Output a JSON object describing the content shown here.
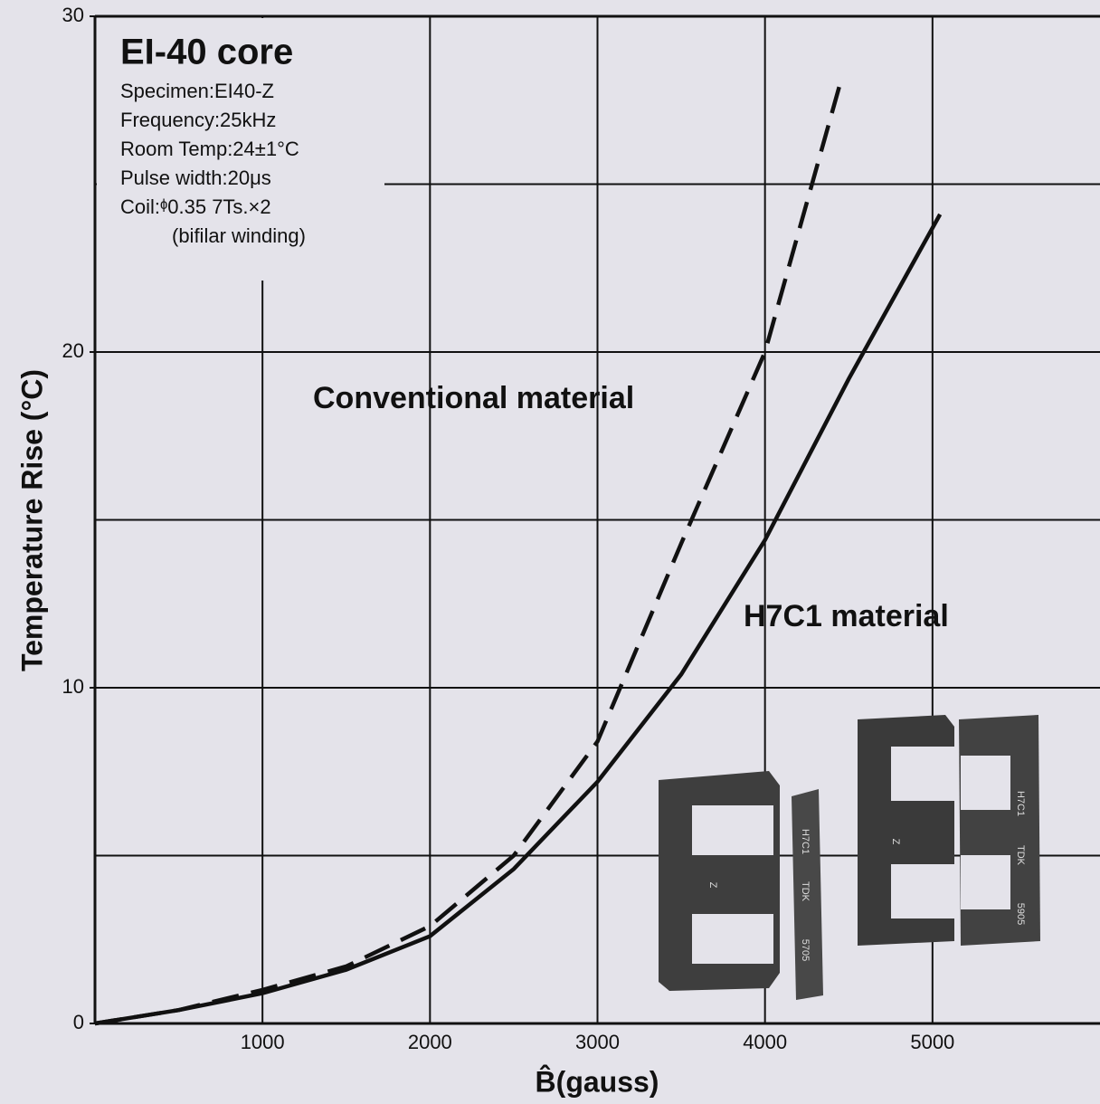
{
  "chart_data": {
    "type": "line",
    "title": "EI-40 core",
    "conditions": [
      "Specimen:EI40-Z",
      "Frequency:25kHz",
      "Room Temp:24±1°C",
      "Pulse width:20μs",
      "Coil:ᶲ0.35 7Ts.×2",
      "(bifilar winding)"
    ],
    "x_label": "B̂(gauss)",
    "y_label": "Temperature Rise (°C)",
    "xlim": [
      0,
      6000
    ],
    "xticks": [
      1000,
      2000,
      3000,
      4000,
      5000
    ],
    "ylim": [
      0,
      30
    ],
    "yticks": [
      0,
      10,
      20,
      30
    ],
    "y_gridlines": [
      5,
      10,
      15,
      20,
      25
    ],
    "grid": true,
    "series": [
      {
        "name": "Conventional material",
        "color": "#111111",
        "dash": true,
        "x": [
          0,
          500,
          1000,
          1500,
          2000,
          2500,
          3000,
          3500,
          4000,
          4460
        ],
        "values": [
          0,
          0.4,
          1.0,
          1.7,
          2.9,
          5.0,
          8.4,
          14.3,
          20,
          28.2
        ]
      },
      {
        "name": "H7C1 material",
        "color": "#111111",
        "dash": false,
        "x": [
          0,
          500,
          1000,
          1500,
          2000,
          2500,
          3000,
          3500,
          4000,
          4500,
          5045
        ],
        "values": [
          0,
          0.4,
          0.9,
          1.6,
          2.6,
          4.6,
          7.2,
          10.4,
          14.4,
          19.2,
          24.1
        ]
      }
    ],
    "photo_labels": [
      "H7C1",
      "TDK",
      "5705",
      "Z",
      "H7C1",
      "TDK",
      "5905",
      "Z"
    ]
  }
}
